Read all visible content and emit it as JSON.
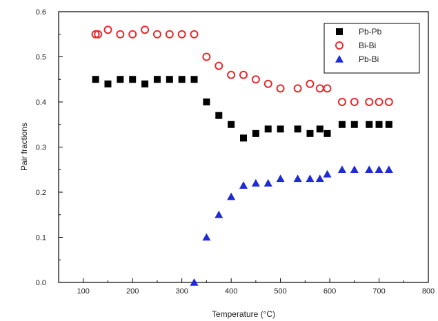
{
  "chart_data": {
    "type": "scatter",
    "xlabel": "Temperature (°C)",
    "ylabel": "Pair fractions",
    "xlim": [
      50,
      800
    ],
    "ylim": [
      0,
      0.6
    ],
    "x_ticks": [
      100,
      200,
      300,
      400,
      500,
      600,
      700,
      800
    ],
    "y_ticks": [
      0.0,
      0.1,
      0.2,
      0.3,
      0.4,
      0.5,
      0.6
    ],
    "x_tick_labels": [
      "100",
      "200",
      "300",
      "400",
      "500",
      "600",
      "700",
      "800"
    ],
    "y_tick_labels": [
      "0.0",
      "0.1",
      "0.2",
      "0.3",
      "0.4",
      "0.5",
      "0.6"
    ],
    "grid": false,
    "legend_position": "top-right",
    "series": [
      {
        "name": "Pb-Pb",
        "marker": "filled-square",
        "color": "#000000",
        "points": [
          [
            125,
            0.45
          ],
          [
            150,
            0.44
          ],
          [
            175,
            0.45
          ],
          [
            200,
            0.45
          ],
          [
            225,
            0.44
          ],
          [
            250,
            0.45
          ],
          [
            275,
            0.45
          ],
          [
            300,
            0.45
          ],
          [
            325,
            0.45
          ],
          [
            350,
            0.4
          ],
          [
            375,
            0.37
          ],
          [
            400,
            0.35
          ],
          [
            425,
            0.32
          ],
          [
            450,
            0.33
          ],
          [
            475,
            0.34
          ],
          [
            500,
            0.34
          ],
          [
            535,
            0.34
          ],
          [
            560,
            0.33
          ],
          [
            580,
            0.34
          ],
          [
            595,
            0.33
          ],
          [
            625,
            0.35
          ],
          [
            650,
            0.35
          ],
          [
            680,
            0.35
          ],
          [
            700,
            0.35
          ],
          [
            720,
            0.35
          ]
        ]
      },
      {
        "name": "Bi-Bi",
        "marker": "open-circle",
        "color": "#e8282b",
        "points": [
          [
            125,
            0.55
          ],
          [
            130,
            0.55
          ],
          [
            150,
            0.56
          ],
          [
            175,
            0.55
          ],
          [
            200,
            0.55
          ],
          [
            225,
            0.56
          ],
          [
            250,
            0.55
          ],
          [
            275,
            0.55
          ],
          [
            300,
            0.55
          ],
          [
            325,
            0.55
          ],
          [
            350,
            0.5
          ],
          [
            375,
            0.48
          ],
          [
            400,
            0.46
          ],
          [
            425,
            0.46
          ],
          [
            450,
            0.45
          ],
          [
            475,
            0.44
          ],
          [
            500,
            0.43
          ],
          [
            535,
            0.43
          ],
          [
            560,
            0.44
          ],
          [
            580,
            0.43
          ],
          [
            595,
            0.43
          ],
          [
            625,
            0.4
          ],
          [
            650,
            0.4
          ],
          [
            680,
            0.4
          ],
          [
            700,
            0.4
          ],
          [
            720,
            0.4
          ]
        ]
      },
      {
        "name": "Pb-Bi",
        "marker": "filled-triangle",
        "color": "#1f2bd6",
        "points": [
          [
            325,
            0.0
          ],
          [
            350,
            0.1
          ],
          [
            375,
            0.15
          ],
          [
            400,
            0.19
          ],
          [
            425,
            0.215
          ],
          [
            450,
            0.22
          ],
          [
            475,
            0.22
          ],
          [
            500,
            0.23
          ],
          [
            535,
            0.23
          ],
          [
            560,
            0.23
          ],
          [
            580,
            0.23
          ],
          [
            595,
            0.24
          ],
          [
            625,
            0.25
          ],
          [
            650,
            0.25
          ],
          [
            680,
            0.25
          ],
          [
            700,
            0.25
          ],
          [
            720,
            0.25
          ]
        ]
      }
    ]
  }
}
